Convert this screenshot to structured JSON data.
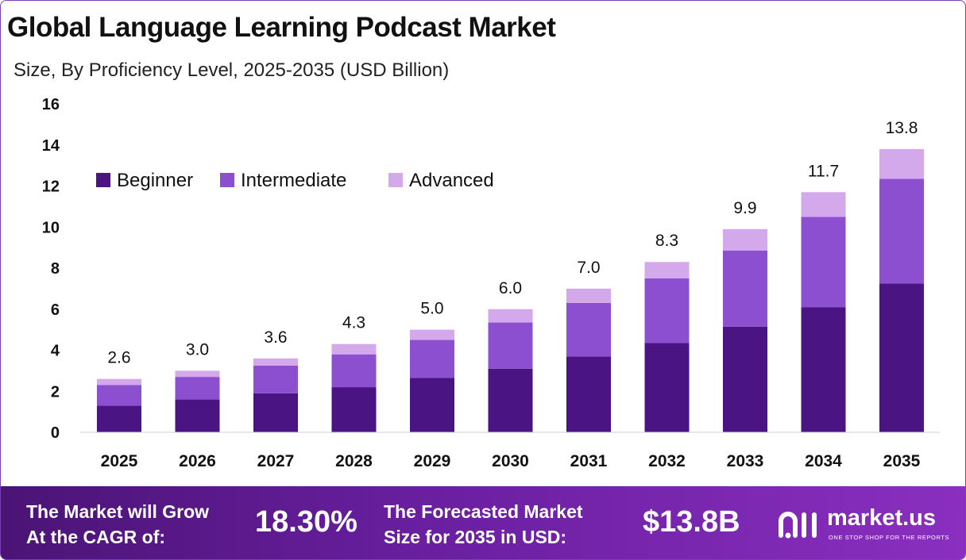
{
  "header": {
    "title": "Global Language Learning Podcast Market",
    "subtitle": "Size, By Proficiency Level, 2025-2035 (USD Billion)"
  },
  "chart_data": {
    "type": "bar",
    "stacked": true,
    "categories": [
      "2025",
      "2026",
      "2027",
      "2028",
      "2029",
      "2030",
      "2031",
      "2032",
      "2033",
      "2034",
      "2035"
    ],
    "series": [
      {
        "name": "Beginner",
        "color": "#4a1482",
        "values": [
          1.3,
          1.6,
          1.9,
          2.2,
          2.65,
          3.1,
          3.7,
          4.35,
          5.15,
          6.1,
          7.25
        ]
      },
      {
        "name": "Intermediate",
        "color": "#8c4fd0",
        "values": [
          1.0,
          1.1,
          1.35,
          1.6,
          1.85,
          2.25,
          2.6,
          3.15,
          3.7,
          4.4,
          5.1
        ]
      },
      {
        "name": "Advanced",
        "color": "#d4a9ec",
        "values": [
          0.3,
          0.3,
          0.35,
          0.5,
          0.5,
          0.65,
          0.7,
          0.8,
          1.05,
          1.2,
          1.45
        ]
      }
    ],
    "totals": [
      "2.6",
      "3.0",
      "3.6",
      "4.3",
      "5.0",
      "6.0",
      "7.0",
      "8.3",
      "9.9",
      "11.7",
      "13.8"
    ],
    "ylim": [
      0,
      16
    ],
    "yticks": [
      "0",
      "2",
      "4",
      "6",
      "8",
      "10",
      "12",
      "14",
      "16"
    ],
    "legend_position": "top-left",
    "grid": false
  },
  "footer": {
    "cagr_label_line1": "The Market will Grow",
    "cagr_label_line2": "At the CAGR of:",
    "cagr_value": "18.30%",
    "forecast_label_line1": "The Forecasted Market",
    "forecast_label_line2": "Size for 2035 in USD:",
    "forecast_value": "$13.8B",
    "brand_name": "market.us",
    "brand_tagline": "ONE STOP SHOP FOR THE REPORTS"
  }
}
